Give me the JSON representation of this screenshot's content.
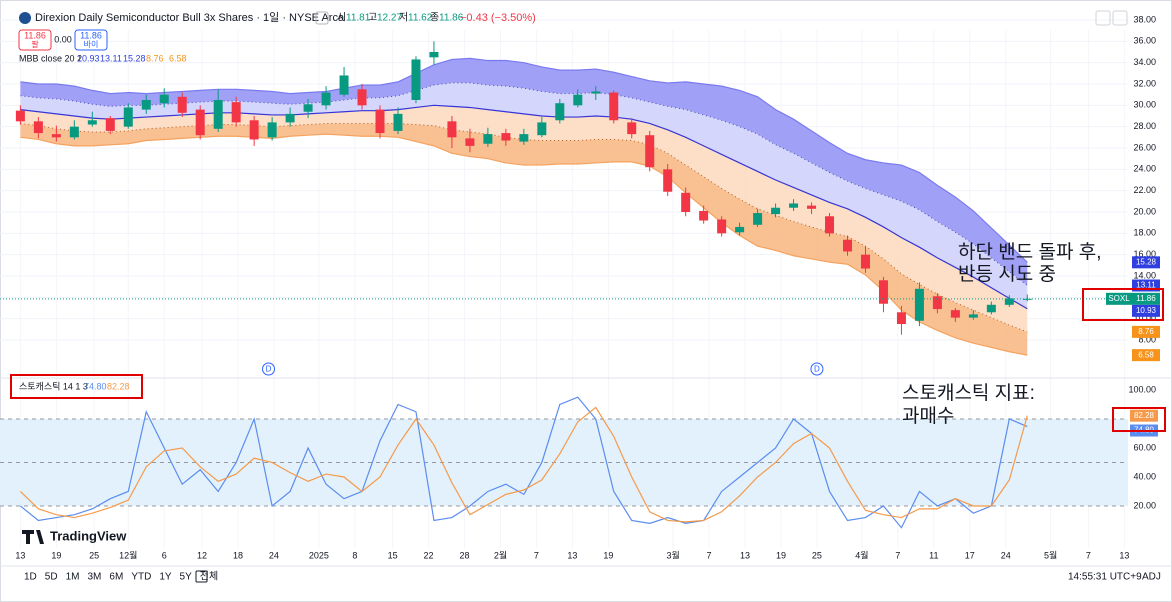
{
  "header": {
    "title": "Direxion Daily Semiconductor Bull 3x Shares · 1일 · NYSE Arca",
    "ohlc_labels": [
      "시",
      "고",
      "저",
      "종"
    ],
    "change": "−0.43 (−3.50%)",
    "sell_label": "팔",
    "buy_label": "바이",
    "spread": "0.00",
    "symbol": "SOXL",
    "branding": "TradingView",
    "indicator": "MBB close 20 2",
    "stoch_indicator": "스토캐스틱 14 1 3"
  },
  "toolbar": {
    "periods": [
      "1D",
      "5D",
      "1M",
      "3M",
      "6M",
      "YTD",
      "1Y",
      "5Y",
      "전체"
    ],
    "time": "14:55:31 UTC+9",
    "adj": "ADJ"
  },
  "annotations": [
    {
      "lines": [
        "하단 밴드 돌파 후,",
        "반등 시도 중"
      ]
    },
    {
      "lines": [
        "스토캐스틱 지표:",
        "과매수"
      ]
    }
  ],
  "chart_data": [
    {
      "type": "candlestick",
      "grid": true,
      "xlim": [
        -0.3,
        61.6
      ],
      "ylim": [
        5,
        39.125
      ],
      "yticks": [
        {
          "value": 8,
          "label": "8.00"
        },
        {
          "value": 10,
          "label": "10.00"
        },
        {
          "value": 12,
          "label": "12.00"
        },
        {
          "value": 14,
          "label": "14.00"
        },
        {
          "value": 16,
          "label": "16.00"
        },
        {
          "value": 18,
          "label": "18.00"
        },
        {
          "value": 20,
          "label": "20.00"
        },
        {
          "value": 22,
          "label": "22.00"
        },
        {
          "value": 24,
          "label": "24.00"
        },
        {
          "value": 26,
          "label": "26.00"
        },
        {
          "value": 28,
          "label": "28.00"
        },
        {
          "value": 30,
          "label": "30.00"
        },
        {
          "value": 32,
          "label": "32.00"
        },
        {
          "value": 34,
          "label": "34.00"
        },
        {
          "value": 36,
          "label": "36.00"
        },
        {
          "value": 38,
          "label": "38.00"
        }
      ],
      "xticks": [
        {
          "value": 0,
          "label": "13"
        },
        {
          "value": 2,
          "label": "19"
        },
        {
          "value": 4.1,
          "label": "25"
        },
        {
          "value": 6,
          "label": "12월"
        },
        {
          "value": 8,
          "label": "6"
        },
        {
          "value": 10.1,
          "label": "12"
        },
        {
          "value": 12.1,
          "label": "18"
        },
        {
          "value": 14.1,
          "label": "24"
        },
        {
          "value": 16.6,
          "label": "2025"
        },
        {
          "value": 18.6,
          "label": "8"
        },
        {
          "value": 20.7,
          "label": "15"
        },
        {
          "value": 22.7,
          "label": "22"
        },
        {
          "value": 24.7,
          "label": "28"
        },
        {
          "value": 26.7,
          "label": "2월"
        },
        {
          "value": 28.7,
          "label": "7"
        },
        {
          "value": 30.7,
          "label": "13"
        },
        {
          "value": 32.7,
          "label": "19"
        },
        {
          "value": 36.3,
          "label": "3월"
        },
        {
          "value": 38.3,
          "label": "7"
        },
        {
          "value": 40.3,
          "label": "13"
        },
        {
          "value": 42.3,
          "label": "19"
        },
        {
          "value": 44.3,
          "label": "25"
        },
        {
          "value": 46.8,
          "label": "4월"
        },
        {
          "value": 48.8,
          "label": "7"
        },
        {
          "value": 50.8,
          "label": "11"
        },
        {
          "value": 52.8,
          "label": "17"
        },
        {
          "value": 54.8,
          "label": "24"
        },
        {
          "value": 57.3,
          "label": "5월"
        },
        {
          "value": 59.4,
          "label": "7"
        },
        {
          "value": 61.4,
          "label": "13"
        }
      ],
      "up_color": "#089981",
      "down_color": "#f23645",
      "open": [
        29.5,
        28.5,
        27.3,
        27.0,
        28.2,
        28.8,
        28.0,
        29.6,
        30.2,
        30.8,
        29.6,
        27.8,
        30.3,
        28.6,
        27.0,
        28.4,
        29.4,
        30.0,
        31.0,
        31.5,
        29.6,
        27.6,
        30.5,
        34.5,
        28.5,
        26.9,
        26.4,
        27.4,
        26.6,
        27.2,
        28.6,
        30.0,
        31.1,
        31.2,
        28.4,
        27.2,
        24.0,
        21.8,
        20.1,
        19.3,
        18.1,
        18.8,
        19.8,
        20.4,
        20.6,
        19.6,
        17.4,
        16.0,
        13.6,
        10.6,
        9.8,
        12.1,
        10.8,
        10.1,
        10.6,
        11.3,
        11.81
      ],
      "high": [
        30.0,
        28.9,
        28.1,
        28.6,
        29.4,
        29.0,
        30.2,
        31.0,
        31.6,
        31.2,
        30.0,
        31.5,
        30.8,
        29.0,
        28.9,
        29.8,
        30.6,
        31.8,
        33.6,
        32.0,
        30.0,
        29.8,
        34.6,
        36.0,
        29.0,
        27.8,
        27.9,
        27.8,
        27.8,
        28.9,
        30.6,
        31.5,
        31.8,
        31.4,
        28.8,
        27.6,
        24.5,
        22.3,
        20.6,
        19.6,
        19.0,
        20.3,
        20.8,
        21.2,
        20.9,
        19.9,
        17.8,
        16.8,
        13.9,
        11.2,
        13.4,
        12.4,
        11.0,
        10.8,
        11.6,
        12.2,
        12.27
      ],
      "low": [
        28.2,
        26.9,
        26.6,
        26.8,
        28.0,
        27.3,
        27.8,
        29.2,
        29.8,
        28.9,
        26.8,
        27.5,
        28.0,
        26.2,
        26.7,
        28.0,
        28.8,
        29.6,
        30.8,
        29.6,
        26.9,
        27.3,
        30.2,
        33.8,
        26.0,
        25.6,
        26.1,
        26.2,
        26.3,
        27.0,
        28.3,
        29.8,
        30.5,
        28.3,
        26.9,
        23.8,
        21.5,
        19.6,
        18.9,
        17.7,
        17.8,
        18.6,
        19.5,
        20.1,
        19.8,
        17.7,
        15.9,
        14.3,
        10.6,
        8.5,
        9.3,
        10.5,
        9.7,
        9.9,
        10.4,
        11.1,
        11.62
      ],
      "close": [
        28.5,
        27.4,
        27.0,
        28.0,
        28.6,
        27.6,
        29.8,
        30.5,
        31.0,
        29.3,
        27.2,
        30.5,
        28.4,
        26.8,
        28.4,
        29.2,
        30.1,
        31.2,
        32.8,
        30.0,
        27.4,
        29.2,
        34.3,
        35.0,
        27.0,
        26.2,
        27.3,
        26.7,
        27.3,
        28.4,
        30.2,
        31.0,
        31.3,
        28.6,
        27.3,
        24.2,
        21.9,
        20.0,
        19.2,
        18.0,
        18.6,
        19.9,
        20.4,
        20.8,
        20.3,
        18.0,
        16.3,
        14.7,
        11.4,
        9.5,
        12.8,
        10.9,
        10.1,
        10.4,
        11.3,
        11.9,
        11.86
      ],
      "series": [
        {
          "color": "#7a7af0",
          "fill": "#8f8ff5",
          "tag_color": "#2f3fe0",
          "values": [
            32.2,
            32.0,
            32.0,
            31.8,
            31.4,
            31.1,
            31.2,
            31.1,
            31.2,
            31.3,
            31.4,
            31.5,
            31.5,
            31.4,
            31.3,
            31.1,
            31.2,
            31.3,
            31.6,
            31.9,
            31.9,
            32.2,
            33.0,
            33.8,
            34.3,
            34.4,
            34.2,
            34.2,
            34.0,
            33.6,
            33.3,
            33.3,
            33.4,
            33.1,
            32.7,
            32.3,
            32.1,
            32.2,
            32.0,
            31.8,
            31.4,
            30.8,
            29.6,
            28.7,
            27.6,
            26.5,
            25.5,
            24.9,
            24.6,
            24.4,
            23.7,
            22.5,
            21.4,
            20.1,
            18.5,
            16.9,
            15.28
          ]
        },
        {
          "color": "#4a4ab0",
          "fill": "#cdd0fa",
          "tag_color": "#2f3fe0",
          "dash": true,
          "values": [
            30.9,
            30.7,
            30.6,
            30.4,
            30.1,
            29.9,
            30.0,
            30.0,
            30.1,
            30.2,
            30.3,
            30.4,
            30.4,
            30.3,
            30.2,
            30.1,
            30.2,
            30.3,
            30.5,
            30.7,
            30.7,
            30.9,
            31.4,
            31.9,
            32.1,
            32.1,
            31.9,
            31.8,
            31.6,
            31.3,
            31.1,
            31.1,
            31.2,
            31.0,
            30.7,
            30.3,
            29.9,
            29.6,
            29.1,
            28.6,
            28.0,
            27.3,
            26.3,
            25.5,
            24.6,
            23.7,
            22.9,
            22.2,
            21.6,
            21.0,
            20.2,
            19.1,
            18.1,
            17.0,
            15.7,
            14.4,
            13.11
          ]
        },
        {
          "color": "#3535d8",
          "fill": "#fdd9bd",
          "tag_color": "#2f3fe0",
          "values": [
            29.6,
            29.4,
            29.2,
            29.0,
            28.8,
            28.7,
            28.8,
            28.9,
            29.0,
            29.1,
            29.2,
            29.3,
            29.3,
            29.2,
            29.1,
            29.1,
            29.2,
            29.3,
            29.4,
            29.5,
            29.5,
            29.6,
            29.8,
            30.0,
            29.9,
            29.8,
            29.6,
            29.4,
            29.2,
            29.0,
            28.9,
            28.9,
            29.0,
            28.9,
            28.7,
            28.3,
            27.7,
            27.0,
            26.2,
            25.4,
            24.6,
            23.8,
            23.0,
            22.3,
            21.6,
            20.9,
            20.3,
            19.5,
            18.6,
            17.6,
            16.7,
            15.7,
            14.8,
            13.9,
            12.9,
            11.9,
            10.93
          ]
        },
        {
          "color": "#b0602a",
          "fill": "#f8b57f",
          "tag_color": "#f7931a",
          "dash": true,
          "values": [
            28.3,
            28.1,
            27.8,
            27.6,
            27.5,
            27.5,
            27.6,
            27.8,
            27.9,
            28.0,
            28.1,
            28.2,
            28.2,
            28.1,
            28.0,
            28.1,
            28.2,
            28.3,
            28.3,
            28.3,
            28.3,
            28.3,
            28.2,
            28.1,
            27.7,
            27.5,
            27.3,
            27.0,
            26.8,
            26.7,
            26.7,
            26.7,
            26.8,
            26.8,
            26.7,
            26.3,
            25.5,
            24.4,
            23.3,
            22.2,
            21.2,
            20.3,
            19.7,
            19.1,
            18.6,
            18.1,
            17.7,
            16.8,
            15.6,
            14.2,
            13.2,
            12.3,
            11.5,
            10.8,
            10.1,
            9.4,
            8.76
          ]
        },
        {
          "color": "#f5a25e",
          "tag_color": "#f7931a",
          "values": [
            27.0,
            26.8,
            26.4,
            26.2,
            26.2,
            26.3,
            26.4,
            26.7,
            26.8,
            26.9,
            27.0,
            27.1,
            27.1,
            27.0,
            26.9,
            27.1,
            27.2,
            27.3,
            27.2,
            27.1,
            27.1,
            27.0,
            26.6,
            26.2,
            25.5,
            25.2,
            25.0,
            24.6,
            24.4,
            24.4,
            24.5,
            24.5,
            24.6,
            24.7,
            24.7,
            24.3,
            23.3,
            21.8,
            20.4,
            19.0,
            17.8,
            16.8,
            16.4,
            15.9,
            15.6,
            15.3,
            15.1,
            14.1,
            12.6,
            10.8,
            9.7,
            8.9,
            8.2,
            7.7,
            7.3,
            6.9,
            6.58
          ]
        }
      ],
      "events": [
        {
          "x": 13.8,
          "label": "D"
        },
        {
          "x": 44.3,
          "label": "D"
        }
      ]
    },
    {
      "type": "line",
      "xlim": [
        -0.3,
        61.6
      ],
      "ylim": [
        -9,
        106.9
      ],
      "yticks": [
        {
          "value": 20,
          "label": "20.00"
        },
        {
          "value": 40,
          "label": "40.00"
        },
        {
          "value": 60,
          "label": "60.00"
        },
        {
          "value": 80,
          "label": "80.00"
        },
        {
          "value": 100,
          "label": "100.00"
        }
      ],
      "hlines": [
        80,
        50,
        20
      ],
      "band_color": "#e3f1fc",
      "series": [
        {
          "color": "#5b8def",
          "last_label": "74.80",
          "values": [
            20,
            10,
            12,
            14,
            18,
            25,
            30,
            85,
            60,
            35,
            45,
            30,
            50,
            80,
            20,
            30,
            60,
            35,
            25,
            30,
            65,
            90,
            85,
            10,
            12,
            20,
            30,
            35,
            28,
            50,
            90,
            95,
            80,
            30,
            10,
            8,
            12,
            8,
            10,
            30,
            40,
            50,
            60,
            80,
            70,
            30,
            10,
            12,
            20,
            5,
            30,
            20,
            25,
            15,
            20,
            80,
            74.8
          ]
        },
        {
          "color": "#f59a4a",
          "last_label": "82.28",
          "values": [
            30,
            18,
            14,
            12,
            15,
            19,
            24,
            47,
            58,
            60,
            47,
            37,
            42,
            53,
            50,
            43,
            37,
            42,
            40,
            30,
            40,
            62,
            80,
            62,
            36,
            14,
            21,
            28,
            31,
            38,
            56,
            78,
            88,
            68,
            40,
            16,
            10,
            9,
            10,
            16,
            27,
            40,
            50,
            63,
            70,
            60,
            37,
            17,
            14,
            12,
            18,
            18,
            25,
            20,
            20,
            38,
            82.28
          ]
        }
      ]
    }
  ]
}
